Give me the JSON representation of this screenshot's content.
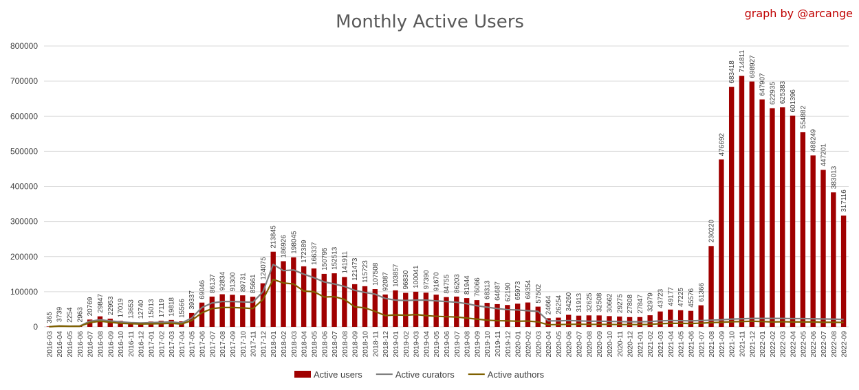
{
  "chart_data": {
    "type": "bar",
    "title": "Monthly Active Users",
    "subtitle": "graph by @arcange",
    "xlabel": "",
    "ylabel": "",
    "ylim": [
      0,
      800000
    ],
    "yticks": [
      "0",
      "100000",
      "200000",
      "300000",
      "400000",
      "500000",
      "600000",
      "700000",
      "800000"
    ],
    "grid": true,
    "legend_position": "bottom",
    "categories": [
      "2016-03",
      "2016-04",
      "2016-05",
      "2016-06",
      "2016-07",
      "2016-08",
      "2016-09",
      "2016-10",
      "2016-11",
      "2016-12",
      "2017-01",
      "2017-02",
      "2017-03",
      "2017-04",
      "2017-05",
      "2017-06",
      "2017-07",
      "2017-08",
      "2017-09",
      "2017-10",
      "2017-11",
      "2017-12",
      "2018-01",
      "2018-02",
      "2018-03",
      "2018-04",
      "2018-05",
      "2018-06",
      "2018-07",
      "2018-08",
      "2018-09",
      "2018-10",
      "2018-11",
      "2018-12",
      "2019-01",
      "2019-02",
      "2019-03",
      "2019-04",
      "2019-05",
      "2019-06",
      "2019-07",
      "2019-08",
      "2019-09",
      "2019-10",
      "2019-11",
      "2019-12",
      "2020-01",
      "2020-02",
      "2020-03",
      "2020-04",
      "2020-05",
      "2020-06",
      "2020-07",
      "2020-08",
      "2020-09",
      "2020-10",
      "2020-11",
      "2020-12",
      "2021-01",
      "2021-02",
      "2021-03",
      "2021-04",
      "2021-05",
      "2021-06",
      "2021-07",
      "2021-08",
      "2021-09",
      "2021-10",
      "2021-11",
      "2021-12",
      "2022-01",
      "2022-02",
      "2022-03",
      "2022-04",
      "2022-05",
      "2022-06",
      "2022-07",
      "2022-08",
      "2022-09"
    ],
    "series": [
      {
        "name": "Active users",
        "kind": "bar",
        "color": "#a00000",
        "values": [
          365,
          3739,
          2254,
          2963,
          20769,
          29847,
          22953,
          17019,
          13653,
          12740,
          15013,
          17119,
          19818,
          15566,
          39337,
          69046,
          86137,
          92834,
          91300,
          89731,
          85661,
          124075,
          213845,
          186926,
          198045,
          172389,
          166337,
          150795,
          152513,
          141911,
          121473,
          115723,
          107508,
          92087,
          103857,
          96830,
          100041,
          97390,
          91670,
          84755,
          86203,
          81944,
          76066,
          68313,
          64687,
          62190,
          65973,
          69354,
          57502,
          24664,
          26254,
          34260,
          31913,
          32625,
          32508,
          30662,
          29275,
          27808,
          27847,
          32979,
          43723,
          49177,
          47225,
          45576,
          61366,
          230220,
          476692,
          683418,
          714811,
          698927,
          647907,
          622935,
          625383,
          601396,
          554882,
          488249,
          447201,
          383013,
          317116
        ]
      },
      {
        "name": "Active curators",
        "kind": "line",
        "color": "#7f7f7f",
        "values": [
          300,
          2500,
          1800,
          2200,
          16000,
          20000,
          17000,
          14000,
          12000,
          11000,
          12000,
          13000,
          14000,
          11000,
          25000,
          55000,
          68000,
          72000,
          72000,
          71000,
          70000,
          100000,
          178000,
          160000,
          162000,
          150000,
          140000,
          128000,
          122000,
          115000,
          104000,
          98000,
          93000,
          81000,
          76000,
          75000,
          76000,
          76000,
          74000,
          72000,
          70000,
          66000,
          60000,
          56000,
          52000,
          49000,
          48000,
          46000,
          44000,
          17000,
          17000,
          18000,
          17000,
          16000,
          16000,
          15500,
          15000,
          14500,
          14500,
          15000,
          17000,
          18000,
          17500,
          17000,
          18000,
          19000,
          20000,
          22000,
          23000,
          24000,
          24000,
          24000,
          24000,
          23500,
          23500,
          23000,
          22500,
          22000,
          21000
        ]
      },
      {
        "name": "Active authors",
        "kind": "line",
        "color": "#7f6000",
        "values": [
          200,
          2000,
          1500,
          1500,
          12000,
          16000,
          13000,
          10000,
          9000,
          8000,
          8500,
          9000,
          10000,
          8000,
          18000,
          40000,
          52000,
          55000,
          55000,
          54000,
          52000,
          78000,
          135000,
          125000,
          122000,
          102000,
          100000,
          85000,
          86000,
          78000,
          57000,
          54000,
          44000,
          32000,
          34000,
          33000,
          35000,
          32000,
          30000,
          29000,
          28000,
          25000,
          22000,
          19000,
          17500,
          17000,
          16000,
          16500,
          14000,
          6000,
          6500,
          7000,
          7500,
          7000,
          7000,
          6800,
          6500,
          6500,
          6500,
          7000,
          9000,
          10000,
          10000,
          9500,
          10500,
          12000,
          13000,
          14500,
          15000,
          16000,
          15000,
          14000,
          14500,
          14000,
          14000,
          14000,
          13000,
          13000,
          12500
        ]
      }
    ]
  }
}
